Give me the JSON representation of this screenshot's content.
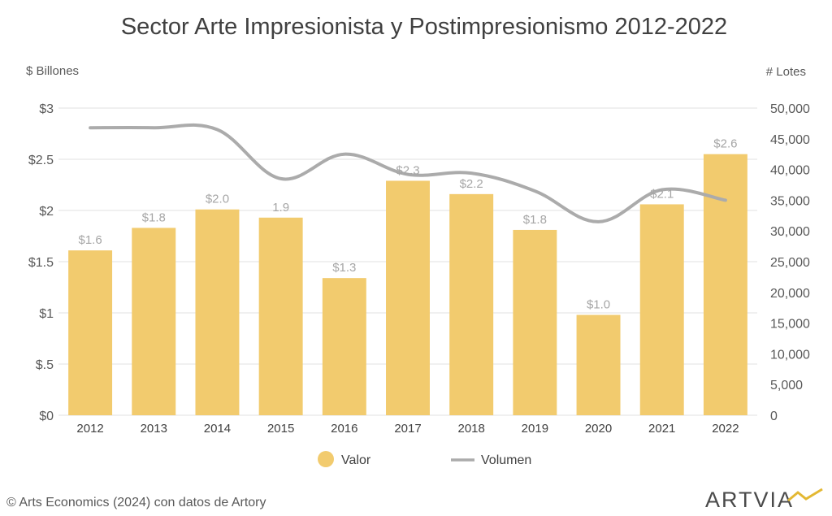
{
  "title": "Sector Arte Impresionista y Postimpresionismo 2012-2022",
  "source": "©  Arts Economics (2024) con datos de Artory",
  "logo": {
    "text": "ARTVIA",
    "accent_color": "#e3b833"
  },
  "colors": {
    "bar": "#f2cb6e",
    "line": "#ababab",
    "grid": "#ececec",
    "label": "#a6a6a6"
  },
  "chart_data": {
    "type": "bar",
    "title": "Sector Arte Impresionista y Postimpresionismo 2012-2022",
    "categories": [
      "2012",
      "2013",
      "2014",
      "2015",
      "2016",
      "2017",
      "2018",
      "2019",
      "2020",
      "2021",
      "2022"
    ],
    "y_left": {
      "label": "$ Billones",
      "ylim": [
        0,
        3
      ],
      "ticks": [
        0,
        0.5,
        1,
        1.5,
        2,
        2.5,
        3
      ],
      "tick_labels": [
        "$0",
        "$.5",
        "$1",
        "$1.5",
        "$2",
        "$2.5",
        "$3"
      ]
    },
    "y_right": {
      "label": "# Lotes",
      "ylim": [
        0,
        50000
      ],
      "ticks": [
        0,
        5000,
        10000,
        15000,
        20000,
        25000,
        30000,
        35000,
        40000,
        45000,
        50000
      ],
      "tick_labels": [
        "0",
        "5,000",
        "10,000",
        "15,000",
        "20,000",
        "25,000",
        "30,000",
        "35,000",
        "40,000",
        "45,000",
        "50,000"
      ]
    },
    "series": [
      {
        "name": "Valor",
        "type": "bar",
        "axis": "left",
        "values": [
          1.61,
          1.83,
          2.01,
          1.93,
          1.34,
          2.29,
          2.16,
          1.81,
          0.98,
          2.06,
          2.55
        ],
        "data_labels": [
          "$1.6",
          "$1.8",
          "$2.0",
          "1.9",
          "$1.3",
          "$2.3",
          "$2.2",
          "$1.8",
          "$1.0",
          "$2.1",
          "$2.6"
        ]
      },
      {
        "name": "Volumen",
        "type": "line",
        "axis": "right",
        "values": [
          46800,
          46800,
          46500,
          38500,
          42500,
          39200,
          39400,
          36500,
          31500,
          36700,
          35000
        ]
      }
    ],
    "legend": "bottom",
    "grid": true
  }
}
